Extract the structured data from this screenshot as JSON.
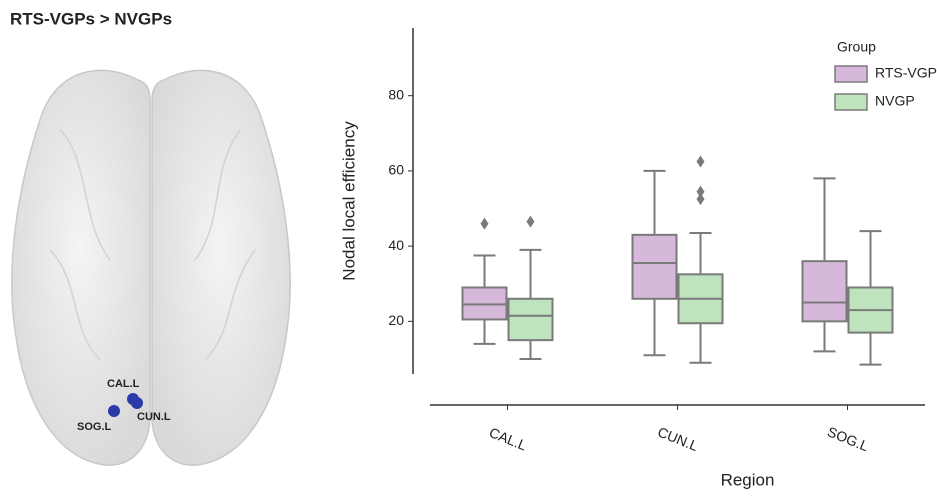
{
  "brain": {
    "title": "RTS-VGPs > NVGPs",
    "nodes": [
      {
        "label": "CAL.L"
      },
      {
        "label": "CUN.L"
      },
      {
        "label": "SOG.L"
      }
    ]
  },
  "chart_data": {
    "type": "box",
    "x_label": "Region",
    "y_label": "Nodal local efficiency",
    "categories": [
      "CAL.L",
      "CUN.L",
      "SOG.L"
    ],
    "legend_title": "Group",
    "legend_position": "upper right",
    "ylim": [
      6,
      98
    ],
    "yticks": [
      20,
      40,
      60,
      80
    ],
    "series": [
      {
        "name": "RTS-VGP",
        "color": "#d6b8da",
        "min": [
          14,
          11,
          12
        ],
        "q1": [
          20.5,
          26,
          20
        ],
        "median": [
          24.5,
          35.5,
          25
        ],
        "q3": [
          29,
          43,
          36
        ],
        "max": [
          37.5,
          60,
          58
        ],
        "outliers": [
          [
            46
          ],
          [],
          []
        ]
      },
      {
        "name": "NVGP",
        "color": "#bfe3bd",
        "min": [
          10,
          9,
          8.5
        ],
        "q1": [
          15,
          19.5,
          17
        ],
        "median": [
          21.5,
          26,
          23
        ],
        "q3": [
          26,
          32.5,
          29
        ],
        "max": [
          39,
          43.5,
          44
        ],
        "outliers": [
          [
            46.5
          ],
          [
            62.5,
            54.5,
            52.5
          ],
          []
        ]
      }
    ]
  }
}
